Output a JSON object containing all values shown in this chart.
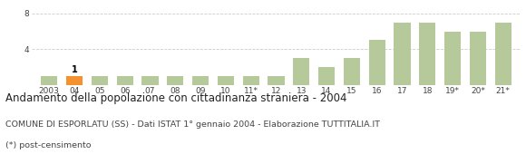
{
  "categories": [
    "2003",
    "04",
    "05",
    "06",
    "07",
    "08",
    "09",
    "10",
    "11*",
    "12",
    "13",
    "14",
    "15",
    "16",
    "17",
    "18",
    "19*",
    "20*",
    "21*"
  ],
  "values": [
    1,
    1,
    1,
    1,
    1,
    1,
    1,
    1,
    1,
    1,
    3,
    2,
    3,
    5,
    7,
    7,
    6,
    6,
    7
  ],
  "highlight_index": 1,
  "bar_color_normal": "#b5c99a",
  "bar_color_highlight": "#f5922f",
  "label_on_highlight": "1",
  "title": "Andamento della popolazione con cittadinanza straniera - 2004",
  "subtitle": "COMUNE DI ESPORLATU (SS) - Dati ISTAT 1° gennaio 2004 - Elaborazione TUTTITALIA.IT",
  "footnote": "(*) post-censimento",
  "ylim": [
    0,
    9
  ],
  "yticks": [
    0,
    4,
    8
  ],
  "grid_color": "#cccccc",
  "background_color": "#ffffff",
  "title_fontsize": 8.5,
  "subtitle_fontsize": 6.8,
  "footnote_fontsize": 6.8,
  "tick_fontsize": 6.5,
  "label_fontsize": 7
}
